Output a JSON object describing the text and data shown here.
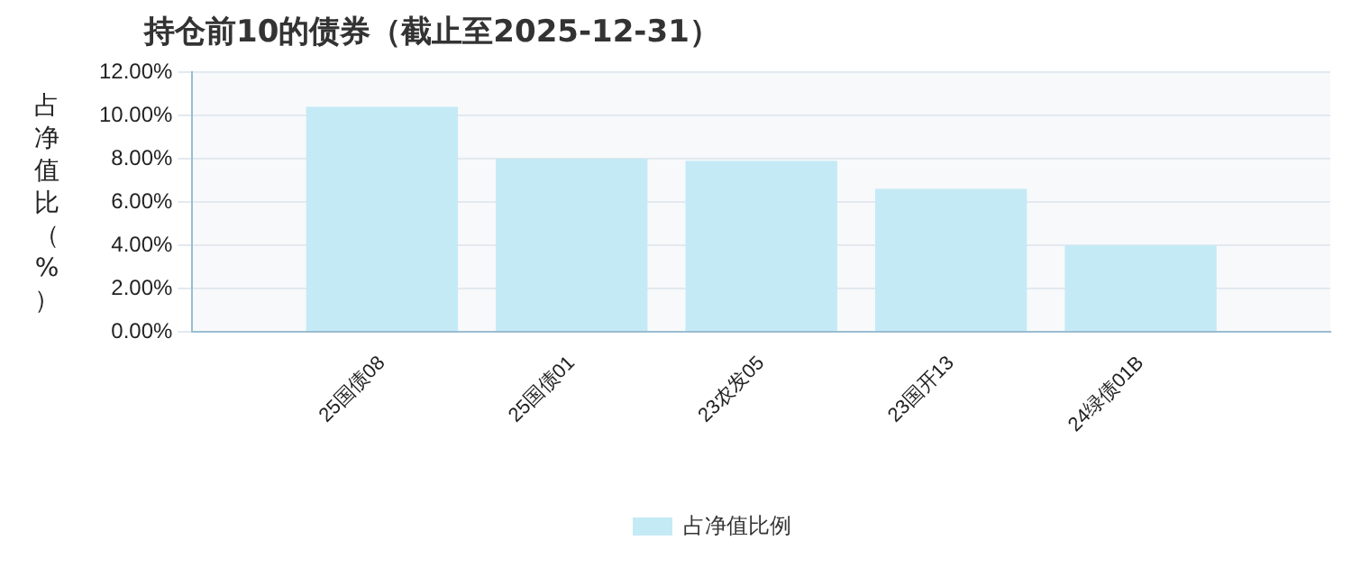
{
  "chart_data": {
    "type": "bar",
    "title": "持仓前10的债券（截止至2025-12-31）",
    "ylabel": "占净值比（%）",
    "categories": [
      null,
      "25国债08",
      "25国债01",
      "23农发05",
      "23国开13",
      "24绿债01B",
      null
    ],
    "series": [
      {
        "name": "占净值比例",
        "color": "#c4eaf6",
        "values": [
          null,
          10.4,
          8.0,
          7.9,
          6.6,
          4.0,
          null
        ]
      }
    ],
    "ylim": [
      0,
      12
    ],
    "yticks": [
      {
        "value": 0,
        "label": "0.00%"
      },
      {
        "value": 2,
        "label": "2.00%"
      },
      {
        "value": 4,
        "label": "4.00%"
      },
      {
        "value": 6,
        "label": "6.00%"
      },
      {
        "value": 8,
        "label": "8.00%"
      },
      {
        "value": 10,
        "label": "10.00%"
      },
      {
        "value": 12,
        "label": "12.00%"
      }
    ],
    "grid": "y",
    "legend": "bottom"
  }
}
